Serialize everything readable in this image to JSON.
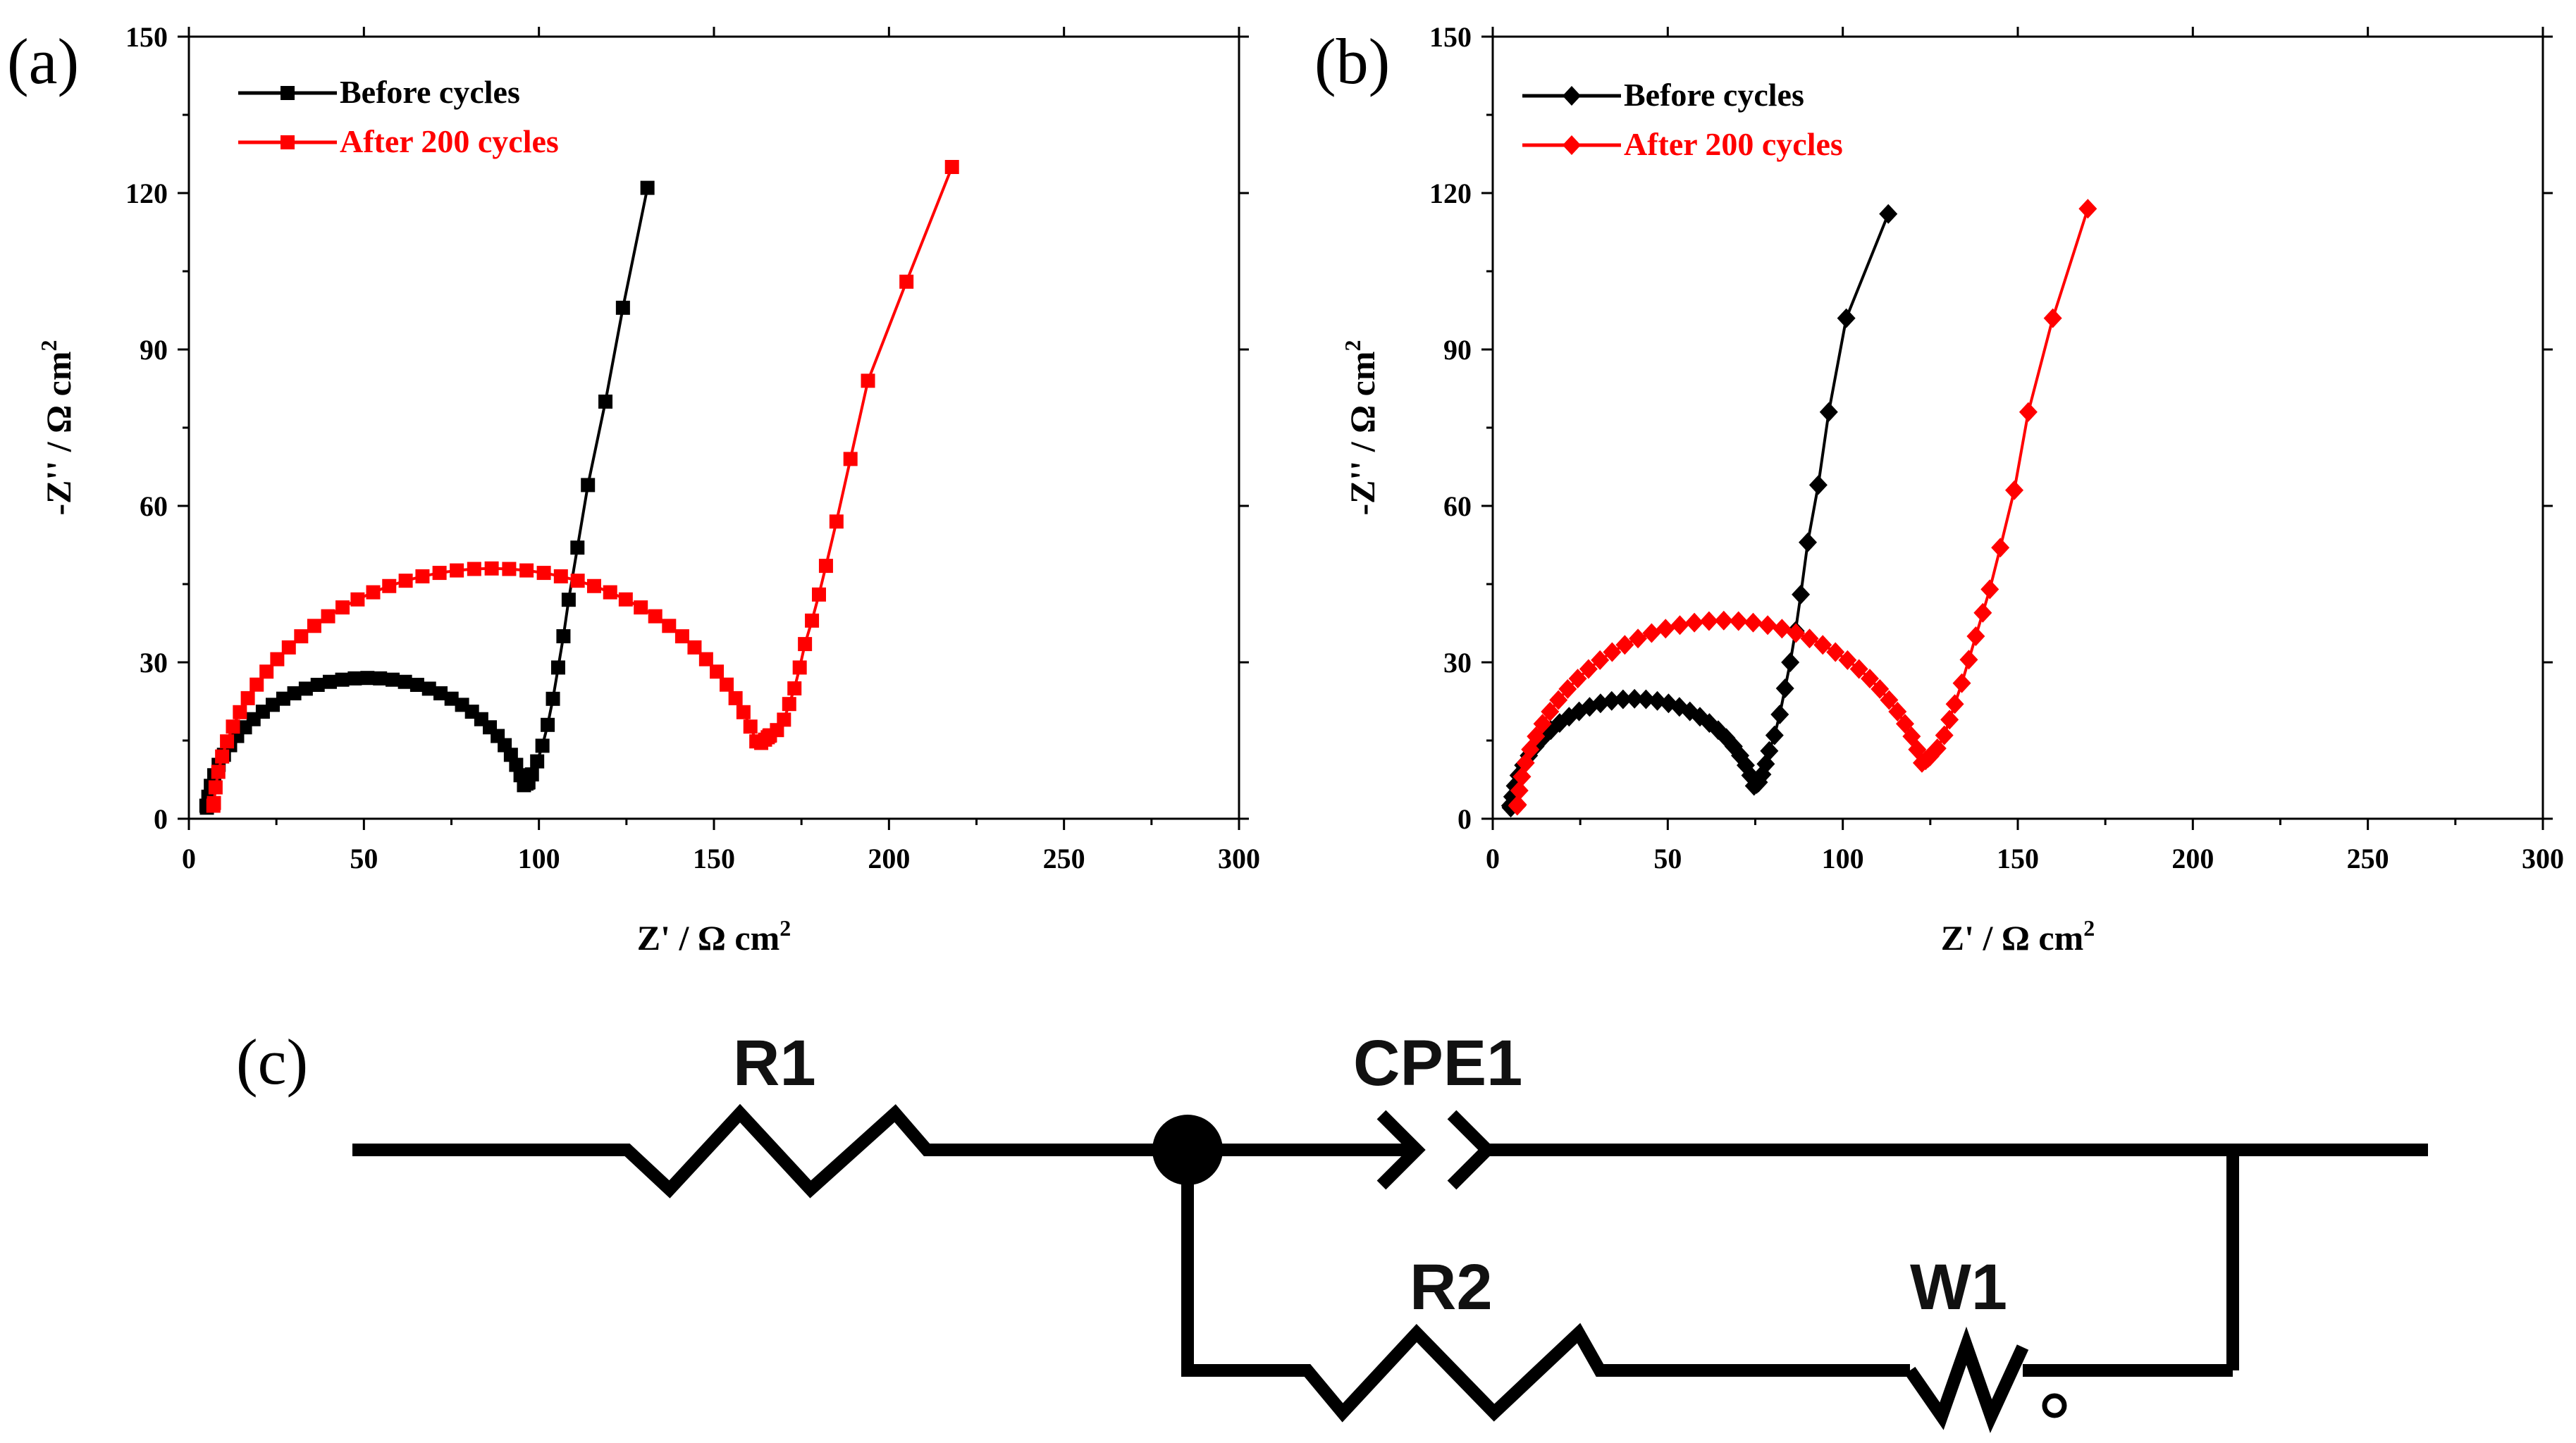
{
  "panels": [
    {
      "id": "a",
      "label": "(a)",
      "chart_data": {
        "type": "scatter",
        "marker": "square",
        "xlabel": "Z' / Ω cm",
        "xlabel_sup": "2",
        "ylabel": "-Z'' / Ω cm",
        "ylabel_sup": "2",
        "xlim": [
          0,
          300
        ],
        "ylim": [
          0,
          150
        ],
        "xticks": [
          0,
          50,
          100,
          150,
          200,
          250,
          300
        ],
        "yticks": [
          0,
          30,
          60,
          90,
          120,
          150
        ],
        "legend_position": "top-left",
        "series": [
          {
            "name": "Before cycles",
            "color": "#000000",
            "arc": {
              "z1": 5,
              "zmin": 97,
              "height": 27,
              "ymin": 7,
              "n": 40
            },
            "tail": [
              [
                97,
                7
              ],
              [
                98,
                8.5
              ],
              [
                99.5,
                11
              ],
              [
                101,
                14
              ],
              [
                102.5,
                18
              ],
              [
                104,
                23
              ],
              [
                105.5,
                29
              ],
              [
                107,
                35
              ],
              [
                108.5,
                42
              ],
              [
                111,
                52
              ],
              [
                114,
                64
              ],
              [
                119,
                80
              ],
              [
                124,
                98
              ],
              [
                131,
                121
              ]
            ]
          },
          {
            "name": "After 200 cycles",
            "color": "#ff0000",
            "arc": {
              "z1": 7,
              "zmin": 166,
              "height": 48,
              "ymin": 16,
              "n": 50
            },
            "tail": [
              [
                166,
                16
              ],
              [
                168,
                17
              ],
              [
                170,
                19
              ],
              [
                171.5,
                22
              ],
              [
                173,
                25
              ],
              [
                174.5,
                29
              ],
              [
                176,
                33.5
              ],
              [
                178,
                38
              ],
              [
                180,
                43
              ],
              [
                182,
                48.5
              ],
              [
                185,
                57
              ],
              [
                189,
                69
              ],
              [
                194,
                84
              ],
              [
                205,
                103
              ],
              [
                218,
                125
              ]
            ]
          }
        ]
      }
    },
    {
      "id": "b",
      "label": "(b)",
      "chart_data": {
        "type": "scatter",
        "marker": "diamond",
        "xlabel": "Z' / Ω cm",
        "xlabel_sup": "2",
        "ylabel": "-Z'' / Ω cm",
        "ylabel_sup": "2",
        "xlim": [
          0,
          300
        ],
        "ylim": [
          0,
          150
        ],
        "xticks": [
          0,
          50,
          100,
          150,
          200,
          250,
          300
        ],
        "yticks": [
          0,
          30,
          60,
          90,
          120,
          150
        ],
        "legend_position": "top-left",
        "series": [
          {
            "name": "Before cycles",
            "color": "#000000",
            "arc": {
              "z1": 5,
              "zmin": 76,
              "height": 23,
              "ymin": 7,
              "n": 34
            },
            "tail": [
              [
                76,
                7
              ],
              [
                77,
                8.5
              ],
              [
                78,
                10.5
              ],
              [
                79,
                13
              ],
              [
                80.5,
                16
              ],
              [
                82,
                20
              ],
              [
                83.5,
                25
              ],
              [
                85,
                30
              ],
              [
                86.5,
                36
              ],
              [
                88,
                43
              ],
              [
                90,
                53
              ],
              [
                93,
                64
              ],
              [
                96,
                78
              ],
              [
                101,
                96
              ],
              [
                113,
                116
              ]
            ]
          },
          {
            "name": "After 200 cycles",
            "color": "#ff0000",
            "arc": {
              "z1": 7,
              "zmin": 125,
              "height": 38,
              "ymin": 12,
              "n": 44
            },
            "tail": [
              [
                125,
                12
              ],
              [
                127,
                13.5
              ],
              [
                129,
                16
              ],
              [
                130.5,
                19
              ],
              [
                132,
                22
              ],
              [
                134,
                26
              ],
              [
                136,
                30.5
              ],
              [
                138,
                35
              ],
              [
                140,
                39.5
              ],
              [
                142,
                44
              ],
              [
                145,
                52
              ],
              [
                149,
                63
              ],
              [
                153,
                78
              ],
              [
                160,
                96
              ],
              [
                170,
                117
              ]
            ]
          }
        ]
      }
    }
  ],
  "circuit": {
    "label": "(c)",
    "components": {
      "r1": "R1",
      "cpe1": "CPE1",
      "r2": "R2",
      "w1": "W1"
    }
  }
}
